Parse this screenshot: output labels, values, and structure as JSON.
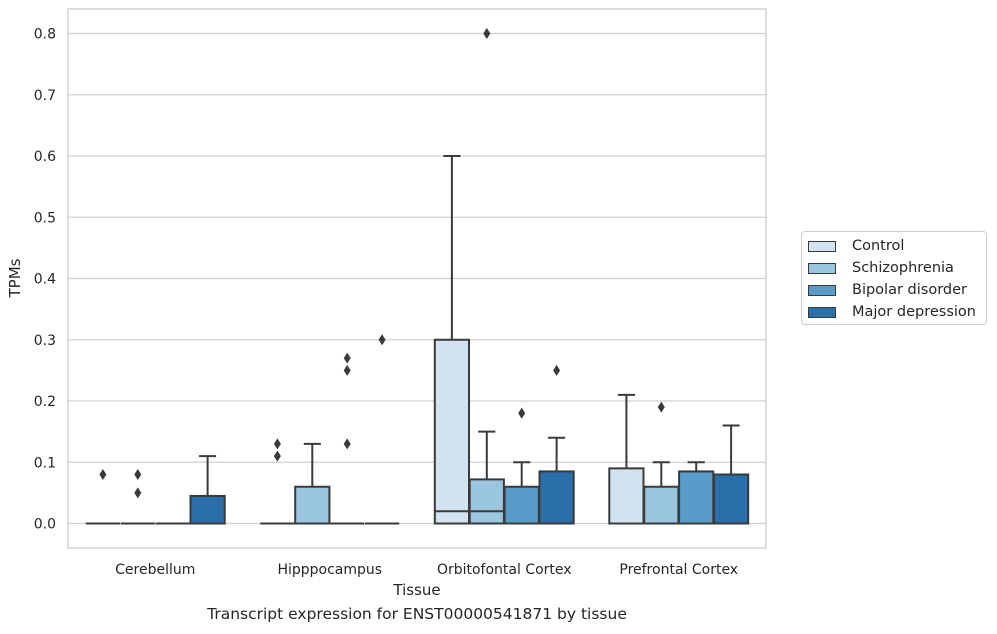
{
  "caption": "Transcript expression for ENST00000541871 by tissue",
  "chart_data": {
    "type": "boxplot",
    "xlabel": "Tissue",
    "ylabel": "TPMs",
    "ylim": [
      -0.04,
      0.84
    ],
    "yticks": [
      "0.0",
      "0.1",
      "0.2",
      "0.3",
      "0.4",
      "0.5",
      "0.6",
      "0.7",
      "0.8"
    ],
    "grid": true,
    "legend_position": "right",
    "categories": [
      "Cerebellum",
      "Hipppocampus",
      "Orbitofontal Cortex",
      "Prefrontal Cortex"
    ],
    "series": [
      {
        "name": "Control",
        "color": "#d2e2f1",
        "boxes": [
          {
            "q1": 0,
            "median": 0,
            "q3": 0,
            "whisker_low": 0,
            "whisker_high": 0,
            "outliers": [
              0.08
            ]
          },
          {
            "q1": 0,
            "median": 0,
            "q3": 0,
            "whisker_low": 0,
            "whisker_high": 0,
            "outliers": [
              0.11,
              0.13
            ]
          },
          {
            "q1": 0,
            "median": 0.02,
            "q3": 0.3,
            "whisker_low": 0,
            "whisker_high": 0.6,
            "outliers": []
          },
          {
            "q1": 0,
            "median": 0,
            "q3": 0.09,
            "whisker_low": 0,
            "whisker_high": 0.21,
            "outliers": []
          }
        ]
      },
      {
        "name": "Schizophrenia",
        "color": "#9bc6df",
        "boxes": [
          {
            "q1": 0,
            "median": 0,
            "q3": 0,
            "whisker_low": 0,
            "whisker_high": 0,
            "outliers": [
              0.08,
              0.05
            ]
          },
          {
            "q1": 0,
            "median": 0,
            "q3": 0.06,
            "whisker_low": 0,
            "whisker_high": 0.13,
            "outliers": []
          },
          {
            "q1": 0,
            "median": 0.02,
            "q3": 0.072,
            "whisker_low": 0,
            "whisker_high": 0.15,
            "outliers": [
              0.8
            ]
          },
          {
            "q1": 0,
            "median": 0,
            "q3": 0.06,
            "whisker_low": 0,
            "whisker_high": 0.1,
            "outliers": [
              0.19
            ]
          }
        ]
      },
      {
        "name": "Bipolar disorder",
        "color": "#5a9cc9",
        "boxes": [
          {
            "q1": 0,
            "median": 0,
            "q3": 0,
            "whisker_low": 0,
            "whisker_high": 0,
            "outliers": []
          },
          {
            "q1": 0,
            "median": 0,
            "q3": 0,
            "whisker_low": 0,
            "whisker_high": 0,
            "outliers": [
              0.27,
              0.25,
              0.13
            ]
          },
          {
            "q1": 0,
            "median": 0,
            "q3": 0.06,
            "whisker_low": 0,
            "whisker_high": 0.1,
            "outliers": [
              0.18
            ]
          },
          {
            "q1": 0,
            "median": 0,
            "q3": 0.085,
            "whisker_low": 0,
            "whisker_high": 0.1,
            "outliers": []
          }
        ]
      },
      {
        "name": "Major depression",
        "color": "#2a6eaa",
        "boxes": [
          {
            "q1": 0,
            "median": 0,
            "q3": 0.045,
            "whisker_low": 0,
            "whisker_high": 0.11,
            "outliers": []
          },
          {
            "q1": 0,
            "median": 0,
            "q3": 0,
            "whisker_low": 0,
            "whisker_high": 0,
            "outliers": [
              0.3
            ]
          },
          {
            "q1": 0,
            "median": 0,
            "q3": 0.085,
            "whisker_low": 0,
            "whisker_high": 0.14,
            "outliers": [
              0.25
            ]
          },
          {
            "q1": 0,
            "median": 0,
            "q3": 0.08,
            "whisker_low": 0,
            "whisker_high": 0.16,
            "outliers": []
          }
        ]
      }
    ]
  }
}
